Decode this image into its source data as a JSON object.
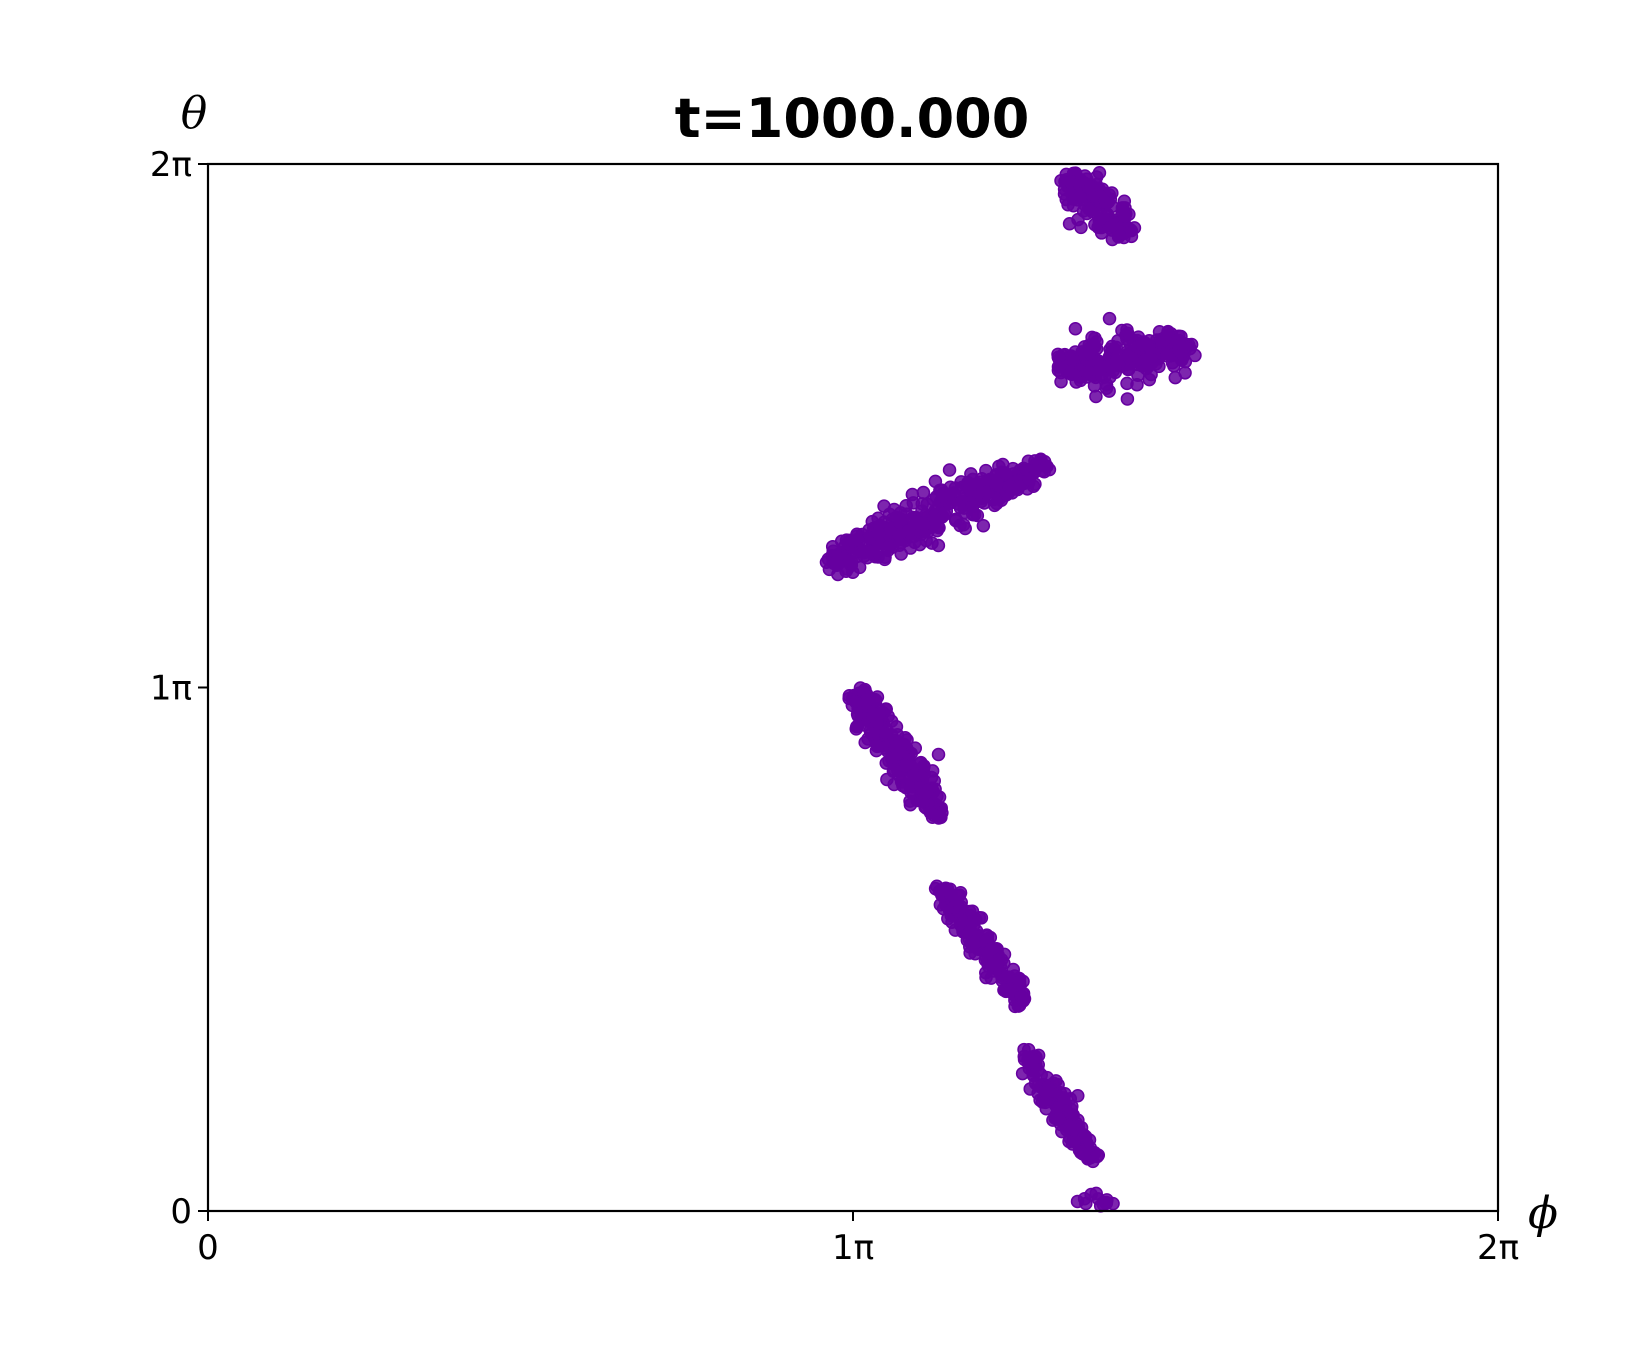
{
  "chart_data": {
    "type": "scatter",
    "title": "t=1000.000",
    "xlabel": "ϕ",
    "ylabel": "θ",
    "x_unit": "multiples of pi",
    "y_unit": "multiples of pi",
    "xlim": [
      0,
      2
    ],
    "ylim": [
      0,
      2
    ],
    "xticks": [
      0,
      1,
      2
    ],
    "yticks": [
      0,
      1,
      2
    ],
    "xtick_labels": [
      "0",
      "1π",
      "2π"
    ],
    "ytick_labels": [
      "0",
      "1π",
      "2π"
    ],
    "grid": false,
    "legend": "none",
    "marker_color": "#6600a0",
    "clusters": [
      {
        "name": "cluster-1",
        "center": [
          1.38,
          1.92
        ],
        "major_axis": [
          0.09,
          -0.11
        ],
        "minor_width": 0.045,
        "count": 160
      },
      {
        "name": "cluster-2",
        "center": [
          1.42,
          1.63
        ],
        "major_axis": [
          0.2,
          0.04
        ],
        "minor_width": 0.06,
        "count": 260
      },
      {
        "name": "cluster-3",
        "center": [
          1.13,
          1.33
        ],
        "major_axis": [
          0.34,
          0.19
        ],
        "minor_width": 0.05,
        "count": 360
      },
      {
        "name": "cluster-4",
        "center": [
          1.07,
          0.87
        ],
        "major_axis": [
          0.13,
          -0.24
        ],
        "minor_width": 0.035,
        "count": 240
      },
      {
        "name": "cluster-5",
        "center": [
          1.2,
          0.51
        ],
        "major_axis": [
          0.13,
          -0.22
        ],
        "minor_width": 0.022,
        "count": 180
      },
      {
        "name": "cluster-6",
        "center": [
          1.32,
          0.2
        ],
        "major_axis": [
          0.1,
          -0.2
        ],
        "minor_width": 0.02,
        "count": 150
      },
      {
        "name": "cluster-7",
        "center": [
          1.38,
          0.015
        ],
        "major_axis": [
          0.05,
          0.0
        ],
        "minor_width": 0.01,
        "count": 12
      }
    ]
  }
}
